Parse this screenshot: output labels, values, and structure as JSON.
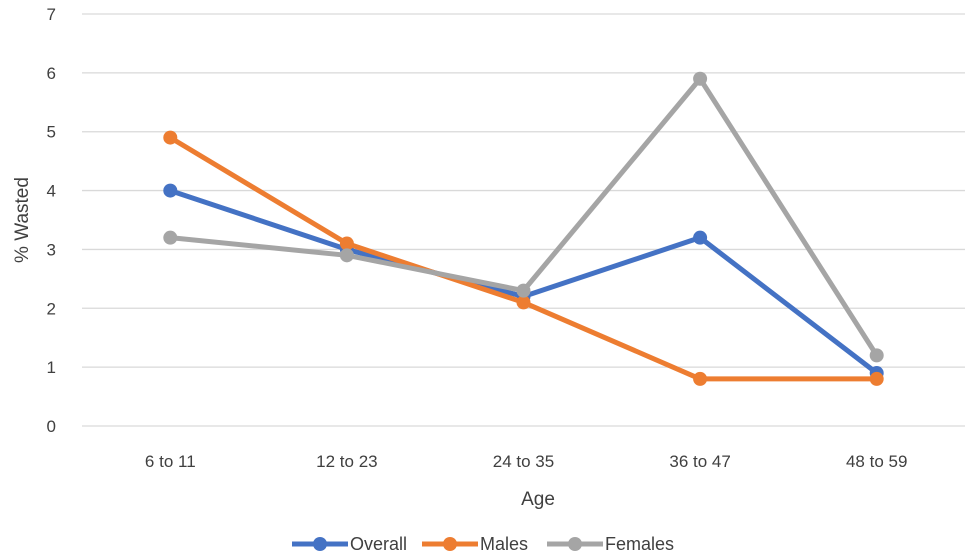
{
  "chart_data": {
    "type": "line",
    "title": "",
    "xlabel": "Age",
    "ylabel": "% Wasted",
    "ylim": [
      0,
      7
    ],
    "yticks": [
      "0",
      "1",
      "2",
      "3",
      "4",
      "5",
      "6",
      "7"
    ],
    "grid": true,
    "legend_position": "bottom",
    "categories": [
      "6 to 11",
      "12 to 23",
      "24 to 35",
      "36 to 47",
      "48 to 59"
    ],
    "series": [
      {
        "name": "Overall",
        "color": "#4472C4",
        "values": [
          4.0,
          3.0,
          2.2,
          3.2,
          0.9
        ]
      },
      {
        "name": "Males",
        "color": "#ED7D31",
        "values": [
          4.9,
          3.1,
          2.1,
          0.8,
          0.8
        ]
      },
      {
        "name": "Females",
        "color": "#A5A5A5",
        "values": [
          3.2,
          2.9,
          2.3,
          5.9,
          1.2
        ]
      }
    ]
  }
}
